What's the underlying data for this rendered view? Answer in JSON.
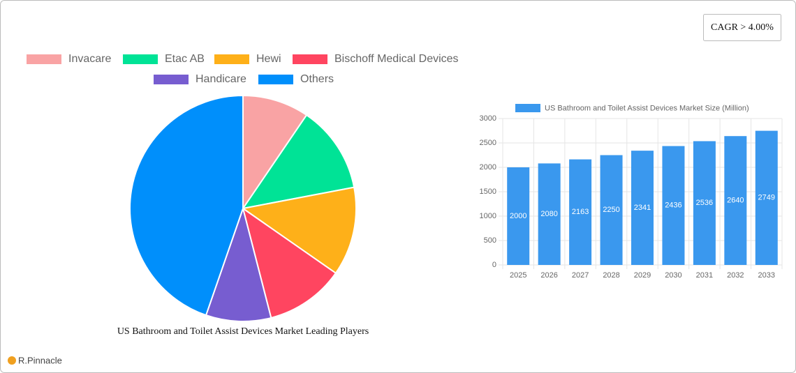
{
  "badge": "CAGR > 4.00%",
  "logo": "R.Pinnacle",
  "chart_data": [
    {
      "type": "pie",
      "title": "US Bathroom and Toilet Assist Devices Market Leading Players",
      "categories": [
        "Invacare",
        "Etac AB",
        "Hewi",
        "Bischoff Medical Devices",
        "Handicare",
        "Others"
      ],
      "values": [
        9.5,
        12.5,
        12.7,
        11.3,
        9.3,
        44.7
      ],
      "colors": [
        "#f9a3a4",
        "#00e396",
        "#feb019",
        "#ff4560",
        "#775dd0",
        "#008ffb"
      ]
    },
    {
      "type": "bar",
      "categories": [
        "2025",
        "2026",
        "2027",
        "2028",
        "2029",
        "2030",
        "2031",
        "2032",
        "2033"
      ],
      "series": [
        {
          "name": "US Bathroom and Toilet Assist Devices Market Size (Million)",
          "color": "#3a98ee",
          "values": [
            2000,
            2080,
            2163,
            2250,
            2341,
            2436,
            2536,
            2640,
            2749
          ]
        }
      ],
      "ylim": [
        0,
        3000
      ],
      "yticks": [
        0,
        500,
        1000,
        1500,
        2000,
        2500,
        3000
      ],
      "grid": true
    }
  ]
}
